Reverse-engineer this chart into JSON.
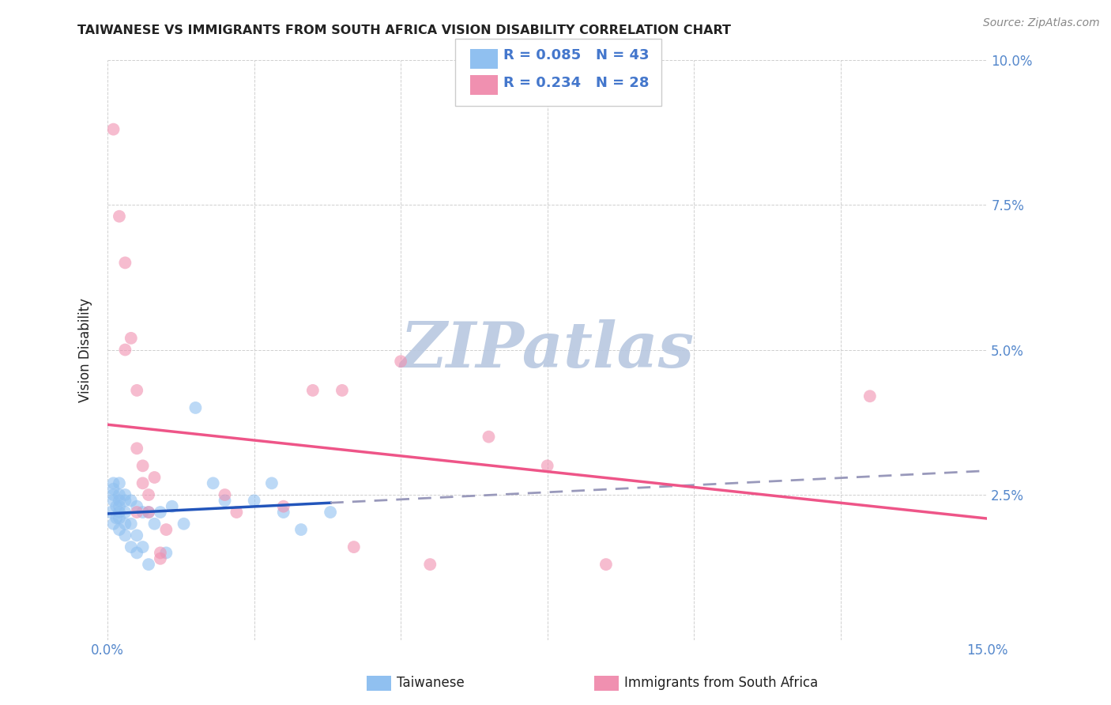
{
  "title": "TAIWANESE VS IMMIGRANTS FROM SOUTH AFRICA VISION DISABILITY CORRELATION CHART",
  "source": "Source: ZipAtlas.com",
  "xlabel_taiwanese": "Taiwanese",
  "xlabel_immigrants": "Immigrants from South Africa",
  "ylabel": "Vision Disability",
  "xlim": [
    0.0,
    0.15
  ],
  "ylim": [
    0.0,
    0.1
  ],
  "xticks": [
    0.0,
    0.025,
    0.05,
    0.075,
    0.1,
    0.125,
    0.15
  ],
  "xtick_labels": [
    "0.0%",
    "",
    "",
    "",
    "",
    "",
    "15.0%"
  ],
  "yticks": [
    0.0,
    0.025,
    0.05,
    0.075,
    0.1
  ],
  "ytick_labels_right": [
    "",
    "2.5%",
    "5.0%",
    "7.5%",
    "10.0%"
  ],
  "grid_color": "#d0d0d0",
  "background_color": "#ffffff",
  "taiwanese_color": "#90C0F0",
  "immigrants_color": "#F090B0",
  "taiwanese_R": 0.085,
  "taiwanese_N": 43,
  "immigrants_R": 0.234,
  "immigrants_N": 28,
  "taiwanese_scatter_x": [
    0.0005,
    0.001,
    0.001,
    0.001,
    0.001,
    0.001,
    0.0015,
    0.0015,
    0.002,
    0.002,
    0.002,
    0.002,
    0.002,
    0.002,
    0.002,
    0.003,
    0.003,
    0.003,
    0.003,
    0.003,
    0.004,
    0.004,
    0.004,
    0.005,
    0.005,
    0.005,
    0.006,
    0.006,
    0.007,
    0.007,
    0.008,
    0.009,
    0.01,
    0.011,
    0.013,
    0.015,
    0.018,
    0.02,
    0.025,
    0.028,
    0.03,
    0.033,
    0.038
  ],
  "taiwanese_scatter_y": [
    0.022,
    0.027,
    0.026,
    0.025,
    0.024,
    0.02,
    0.023,
    0.021,
    0.027,
    0.025,
    0.024,
    0.023,
    0.022,
    0.021,
    0.019,
    0.025,
    0.024,
    0.022,
    0.02,
    0.018,
    0.024,
    0.02,
    0.016,
    0.023,
    0.018,
    0.015,
    0.022,
    0.016,
    0.022,
    0.013,
    0.02,
    0.022,
    0.015,
    0.023,
    0.02,
    0.04,
    0.027,
    0.024,
    0.024,
    0.027,
    0.022,
    0.019,
    0.022
  ],
  "immigrants_scatter_x": [
    0.001,
    0.002,
    0.003,
    0.003,
    0.004,
    0.005,
    0.005,
    0.005,
    0.006,
    0.006,
    0.007,
    0.007,
    0.008,
    0.009,
    0.009,
    0.01,
    0.02,
    0.022,
    0.03,
    0.035,
    0.04,
    0.042,
    0.05,
    0.055,
    0.065,
    0.075,
    0.085,
    0.13
  ],
  "immigrants_scatter_y": [
    0.088,
    0.073,
    0.065,
    0.05,
    0.052,
    0.043,
    0.033,
    0.022,
    0.03,
    0.027,
    0.025,
    0.022,
    0.028,
    0.015,
    0.014,
    0.019,
    0.025,
    0.022,
    0.023,
    0.043,
    0.043,
    0.016,
    0.048,
    0.013,
    0.035,
    0.03,
    0.013,
    0.042
  ],
  "taiwanese_line_color": "#2255BB",
  "immigrants_line_color": "#EE5588",
  "dash_color": "#9999BB",
  "watermark_text": "ZIPatlas",
  "watermark_color_zip": "#b8c8e0",
  "watermark_color_atlas": "#c8b8a0",
  "title_color": "#222222",
  "tick_label_color": "#5588CC",
  "legend_text_color": "#4477CC"
}
